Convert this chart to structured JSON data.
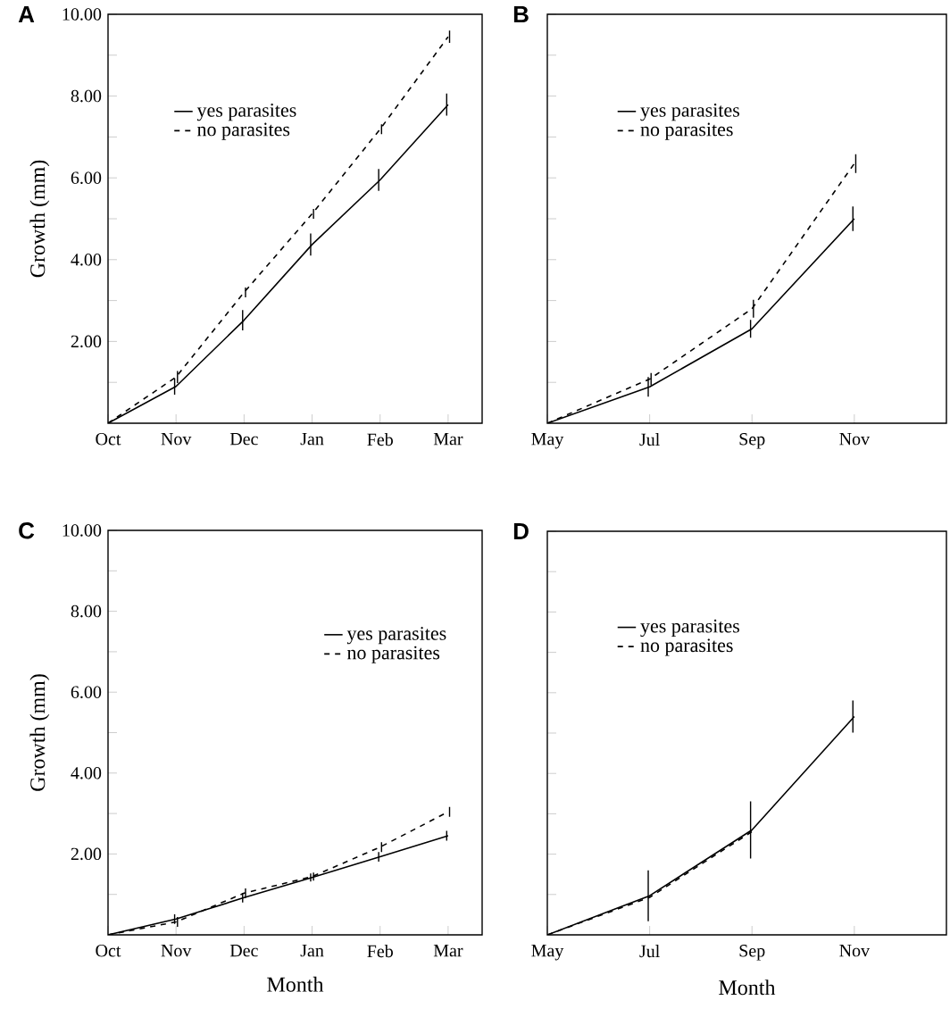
{
  "chart_data": [
    {
      "type": "line",
      "title": "A",
      "ylabel": "Growth (mm)",
      "categories": [
        "Oct",
        "Nov",
        "Dec",
        "Jan",
        "Feb",
        "Mar"
      ],
      "ylim": [
        0,
        10
      ],
      "yticks": [
        {
          "value": 1,
          "label": null
        },
        {
          "value": 2,
          "label": "2.00"
        },
        {
          "value": 3,
          "label": null
        },
        {
          "value": 4,
          "label": "4.00"
        },
        {
          "value": 5,
          "label": null
        },
        {
          "value": 6,
          "label": "6.00"
        },
        {
          "value": 7,
          "label": null
        },
        {
          "value": 8,
          "label": "8.00"
        },
        {
          "value": 9,
          "label": null
        },
        {
          "value": 10,
          "label": "10.00"
        }
      ],
      "legend": "top left",
      "series": [
        {
          "name": "yes parasites",
          "color": "#000000",
          "line_style": "solid",
          "values": [
            0,
            0.9,
            2.52,
            4.37,
            5.95,
            7.79
          ],
          "errors": [
            null,
            0.2,
            0.25,
            0.27,
            0.27,
            0.27
          ]
        },
        {
          "name": "no parasites",
          "color": "#000000",
          "line_style": "dashed",
          "values": [
            0,
            1.13,
            3.2,
            5.12,
            7.19,
            9.45
          ],
          "errors": [
            null,
            0.15,
            0.12,
            0.12,
            0.12,
            0.15
          ]
        }
      ]
    },
    {
      "type": "line",
      "title": "B",
      "categories": [
        "May",
        "Jul",
        "Sep",
        "Nov"
      ],
      "ylim": [
        0,
        10
      ],
      "yticks": [
        {
          "value": 1,
          "label": null
        },
        {
          "value": 2,
          "label": null
        },
        {
          "value": 3,
          "label": null
        },
        {
          "value": 4,
          "label": null
        },
        {
          "value": 5,
          "label": null
        },
        {
          "value": 6,
          "label": null
        },
        {
          "value": 7,
          "label": null
        },
        {
          "value": 8,
          "label": null
        },
        {
          "value": 9,
          "label": null
        },
        {
          "value": 10,
          "label": null
        }
      ],
      "tick_labels": "x",
      "legend": "top left",
      "series": [
        {
          "name": "yes parasites",
          "color": "#000000",
          "line_style": "solid",
          "values": [
            0,
            0.89,
            2.31,
            5.0
          ],
          "errors": [
            null,
            0.24,
            0.22,
            0.3
          ]
        },
        {
          "name": "no parasites",
          "color": "#000000",
          "line_style": "dashed",
          "values": [
            0,
            1.08,
            2.8,
            6.35
          ],
          "errors": [
            null,
            0.15,
            0.22,
            0.23
          ]
        }
      ]
    },
    {
      "type": "line",
      "title": "C",
      "xlabel": "Month",
      "ylabel": "Growth (mm)",
      "categories": [
        "Oct",
        "Nov",
        "Dec",
        "Jan",
        "Feb",
        "Mar"
      ],
      "ylim": [
        0,
        10
      ],
      "yticks": [
        {
          "value": 1,
          "label": null
        },
        {
          "value": 2,
          "label": "2.00"
        },
        {
          "value": 3,
          "label": null
        },
        {
          "value": 4,
          "label": "4.00"
        },
        {
          "value": 5,
          "label": null
        },
        {
          "value": 6,
          "label": "6.00"
        },
        {
          "value": 7,
          "label": null
        },
        {
          "value": 8,
          "label": "8.00"
        },
        {
          "value": 9,
          "label": null
        },
        {
          "value": 10,
          "label": "10.00"
        }
      ],
      "legend": "top right",
      "series": [
        {
          "name": "yes parasites",
          "color": "#000000",
          "line_style": "solid",
          "values": [
            0,
            0.39,
            0.92,
            1.42,
            1.93,
            2.45
          ],
          "errors": [
            null,
            0.12,
            0.12,
            0.1,
            0.12,
            0.12
          ]
        },
        {
          "name": "no parasites",
          "color": "#000000",
          "line_style": "dashed",
          "values": [
            0,
            0.32,
            1.03,
            1.44,
            2.17,
            3.04
          ],
          "errors": [
            null,
            0.12,
            0.12,
            0.1,
            0.12,
            0.12
          ]
        }
      ]
    },
    {
      "type": "line",
      "title": "D",
      "xlabel": "Month",
      "categories": [
        "May",
        "Jul",
        "Sep",
        "Nov"
      ],
      "ylim": [
        0,
        10
      ],
      "yticks": [
        {
          "value": 1,
          "label": null
        },
        {
          "value": 2,
          "label": null
        },
        {
          "value": 3,
          "label": null
        },
        {
          "value": 4,
          "label": null
        },
        {
          "value": 5,
          "label": null
        },
        {
          "value": 6,
          "label": null
        },
        {
          "value": 7,
          "label": null
        },
        {
          "value": 8,
          "label": null
        },
        {
          "value": 9,
          "label": null
        },
        {
          "value": 10,
          "label": null
        }
      ],
      "tick_labels": "x",
      "legend": "top left",
      "series": [
        {
          "name": "yes parasites",
          "color": "#000000",
          "line_style": "solid",
          "values": [
            0,
            0.97,
            2.6,
            5.41
          ],
          "errors": [
            null,
            0.63,
            0.71,
            0.4
          ]
        },
        {
          "name": "no parasites",
          "color": "#000000",
          "line_style": "dashed",
          "values": [
            0,
            0.93,
            2.56,
            null
          ]
        }
      ]
    }
  ]
}
